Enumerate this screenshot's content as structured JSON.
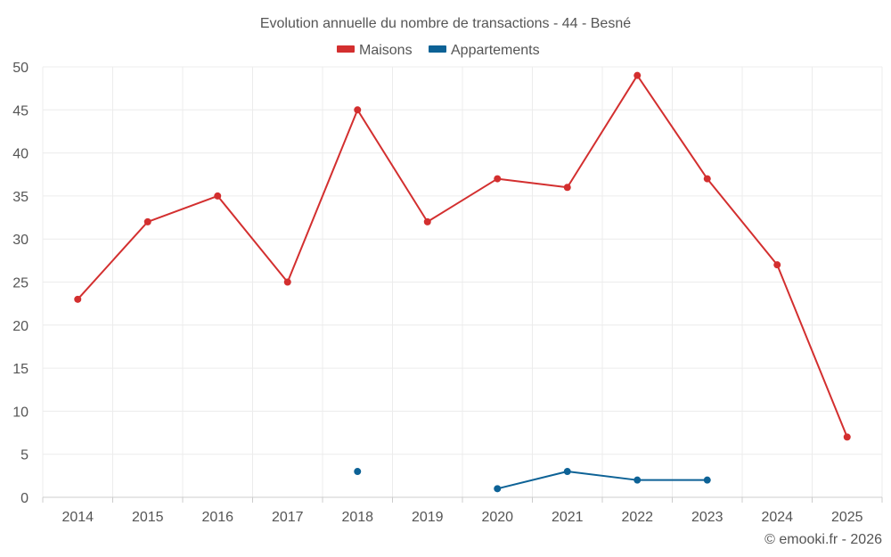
{
  "chart_data": {
    "type": "line",
    "title": "Evolution annuelle du nombre de transactions - 44 - Besné",
    "categories": [
      "2014",
      "2015",
      "2016",
      "2017",
      "2018",
      "2019",
      "2020",
      "2021",
      "2022",
      "2023",
      "2024",
      "2025"
    ],
    "ylim": [
      0,
      50
    ],
    "yticks": [
      0,
      5,
      10,
      15,
      20,
      25,
      30,
      35,
      40,
      45,
      50
    ],
    "grid": true,
    "legend_position": "top-center",
    "series": [
      {
        "name": "Maisons",
        "color": "#d32f2f",
        "values": [
          23,
          32,
          35,
          25,
          45,
          32,
          37,
          36,
          49,
          37,
          27,
          7
        ]
      },
      {
        "name": "Appartements",
        "color": "#0d6296",
        "values": [
          null,
          null,
          null,
          null,
          3,
          null,
          1,
          3,
          2,
          2,
          null,
          null
        ]
      }
    ],
    "credit": "© emooki.fr - 2026"
  }
}
